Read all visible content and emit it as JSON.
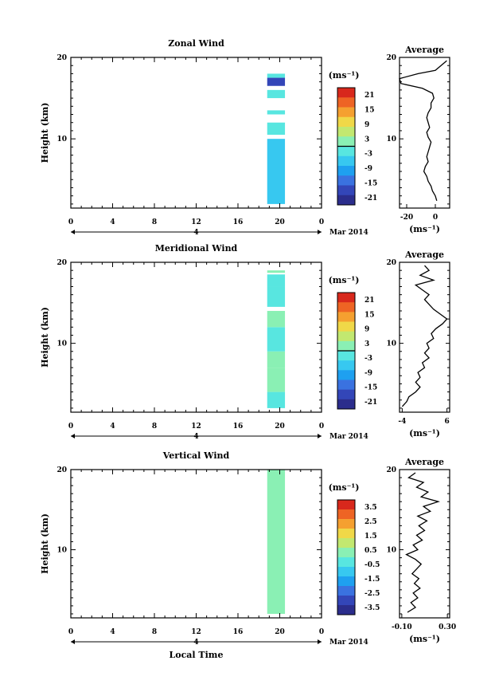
{
  "colors": {
    "palette": [
      "#2b2d8c",
      "#3346b8",
      "#3a72e0",
      "#1ea0f0",
      "#37c8f0",
      "#58e6e0",
      "#8af0b4",
      "#c2e870",
      "#f0d848",
      "#f5a030",
      "#ee6424",
      "#d8281c"
    ]
  },
  "chart_data": [
    {
      "type": "heatmap",
      "title": "Zonal Wind",
      "ylabel": "Height (km)",
      "xlabel": "",
      "x_ticks": [
        "0",
        "4",
        "8",
        "12",
        "16",
        "20",
        "0"
      ],
      "y_ticks": [
        "20",
        "10"
      ],
      "xlim": [
        0,
        24
      ],
      "ylim": [
        1.5,
        20
      ],
      "date_axis": {
        "day": "4",
        "month_label": "Mar 2014"
      },
      "data_extent": {
        "x": [
          18.8,
          20.5
        ],
        "y": [
          2,
          18
        ]
      },
      "colorbar": {
        "unit": "(ms⁻¹)",
        "ticks": [
          "21",
          "15",
          "9",
          "3",
          "-3",
          "-9",
          "-15",
          "-21"
        ],
        "range": [
          -24,
          24
        ],
        "zero_line": 0
      },
      "cells": [
        {
          "y0": 2,
          "y1": 10,
          "value": -6
        },
        {
          "y0": 10.5,
          "y1": 12,
          "value": -2
        },
        {
          "y0": 13,
          "y1": 13.5,
          "value": -1
        },
        {
          "y0": 15,
          "y1": 16,
          "value": -3
        },
        {
          "y0": 16.5,
          "y1": 17.5,
          "value": -19
        },
        {
          "y0": 17.5,
          "y1": 18,
          "value": -1
        }
      ],
      "average": {
        "title": "Average",
        "xlabel": "(ms⁻¹)",
        "x_ticks": [
          "-20",
          "0"
        ],
        "xlim": [
          -25,
          10
        ],
        "y_ticks": [
          "20",
          "10"
        ],
        "ylim": [
          1.5,
          20
        ],
        "profile": [
          {
            "x": 1,
            "y": 2.4
          },
          {
            "x": 0,
            "y": 3
          },
          {
            "x": -2,
            "y": 3.6
          },
          {
            "x": -3,
            "y": 4.2
          },
          {
            "x": -5,
            "y": 4.8
          },
          {
            "x": -6,
            "y": 5.4
          },
          {
            "x": -8,
            "y": 6
          },
          {
            "x": -7,
            "y": 6.6
          },
          {
            "x": -5,
            "y": 7.2
          },
          {
            "x": -6,
            "y": 7.8
          },
          {
            "x": -5,
            "y": 8.4
          },
          {
            "x": -4,
            "y": 9
          },
          {
            "x": -3,
            "y": 9.6
          },
          {
            "x": -5,
            "y": 10.2
          },
          {
            "x": -6,
            "y": 10.8
          },
          {
            "x": -4,
            "y": 11.4
          },
          {
            "x": -5,
            "y": 12
          },
          {
            "x": -6,
            "y": 12.6
          },
          {
            "x": -5,
            "y": 13.2
          },
          {
            "x": -3,
            "y": 13.8
          },
          {
            "x": -3,
            "y": 14.4
          },
          {
            "x": -1,
            "y": 15
          },
          {
            "x": -2,
            "y": 15.6
          },
          {
            "x": -9,
            "y": 16.2
          },
          {
            "x": -24,
            "y": 16.8
          },
          {
            "x": -25,
            "y": 17.4
          },
          {
            "x": -12,
            "y": 18
          },
          {
            "x": 0,
            "y": 18.4
          },
          {
            "x": 8,
            "y": 19.6
          }
        ]
      }
    },
    {
      "type": "heatmap",
      "title": "Meridional Wind",
      "ylabel": "Height (km)",
      "xlabel": "",
      "x_ticks": [
        "0",
        "4",
        "8",
        "12",
        "16",
        "20",
        "0"
      ],
      "y_ticks": [
        "20",
        "10"
      ],
      "xlim": [
        0,
        24
      ],
      "ylim": [
        1.5,
        20
      ],
      "date_axis": {
        "day": "4",
        "month_label": "Mar 2014"
      },
      "data_extent": {
        "x": [
          18.8,
          20.5
        ],
        "y": [
          2,
          19
        ]
      },
      "colorbar": {
        "unit": "(ms⁻¹)",
        "ticks": [
          "21",
          "15",
          "9",
          "3",
          "-3",
          "-9",
          "-15",
          "-21"
        ],
        "range": [
          -24,
          24
        ],
        "zero_line": 0
      },
      "cells": [
        {
          "y0": 2,
          "y1": 4,
          "value": -3
        },
        {
          "y0": 4,
          "y1": 7,
          "value": 0
        },
        {
          "y0": 7,
          "y1": 9,
          "value": 1
        },
        {
          "y0": 9,
          "y1": 12,
          "value": -1
        },
        {
          "y0": 12,
          "y1": 14,
          "value": 3
        },
        {
          "y0": 14.5,
          "y1": 17,
          "value": -1
        },
        {
          "y0": 17,
          "y1": 18.5,
          "value": -3
        },
        {
          "y0": 18.7,
          "y1": 19,
          "value": 0
        }
      ],
      "average": {
        "title": "Average",
        "xlabel": "(ms⁻¹)",
        "x_ticks": [
          "-4",
          "6"
        ],
        "xlim": [
          -4.6,
          6.6
        ],
        "y_ticks": [
          "20",
          "10"
        ],
        "ylim": [
          1.5,
          20
        ],
        "profile": [
          {
            "x": -4,
            "y": 2.2
          },
          {
            "x": -3,
            "y": 2.8
          },
          {
            "x": -2.5,
            "y": 3.4
          },
          {
            "x": -1,
            "y": 4
          },
          {
            "x": 0,
            "y": 4.6
          },
          {
            "x": -1,
            "y": 5.2
          },
          {
            "x": 0,
            "y": 5.8
          },
          {
            "x": -0.5,
            "y": 6.4
          },
          {
            "x": 1,
            "y": 7
          },
          {
            "x": 0.5,
            "y": 7.6
          },
          {
            "x": 2,
            "y": 8.2
          },
          {
            "x": 1,
            "y": 8.8
          },
          {
            "x": 2,
            "y": 9.4
          },
          {
            "x": 1.5,
            "y": 10
          },
          {
            "x": 3,
            "y": 10.6
          },
          {
            "x": 2.5,
            "y": 11.2
          },
          {
            "x": 3.5,
            "y": 11.8
          },
          {
            "x": 5,
            "y": 12.4
          },
          {
            "x": 6,
            "y": 13
          },
          {
            "x": 4.5,
            "y": 13.6
          },
          {
            "x": 3,
            "y": 14.2
          },
          {
            "x": 2,
            "y": 14.8
          },
          {
            "x": 1,
            "y": 15.4
          },
          {
            "x": 2,
            "y": 16
          },
          {
            "x": 0.5,
            "y": 16.6
          },
          {
            "x": -1,
            "y": 17.2
          },
          {
            "x": 3,
            "y": 17.8
          },
          {
            "x": 0,
            "y": 18.4
          },
          {
            "x": 2,
            "y": 19
          },
          {
            "x": 1,
            "y": 19.6
          }
        ]
      }
    },
    {
      "type": "heatmap",
      "title": "Vertical Wind",
      "ylabel": "Height (km)",
      "xlabel": "Local Time",
      "x_ticks": [
        "0",
        "4",
        "8",
        "12",
        "16",
        "20",
        "0"
      ],
      "y_ticks": [
        "20",
        "10"
      ],
      "xlim": [
        0,
        24
      ],
      "ylim": [
        1.5,
        20
      ],
      "date_axis": {
        "day": "4",
        "month_label": "Mar 2014"
      },
      "data_extent": {
        "x": [
          18.8,
          20.5
        ],
        "y": [
          2,
          20
        ]
      },
      "colorbar": {
        "unit": "(ms⁻¹)",
        "ticks": [
          "3.5",
          "2.5",
          "1.5",
          "0.5",
          "-0.5",
          "-1.5",
          "-2.5",
          "-3.5"
        ],
        "range": [
          -4,
          4
        ],
        "zero_line": null
      },
      "cells": [
        {
          "y0": 2,
          "y1": 20,
          "value": 0.2
        }
      ],
      "average": {
        "title": "Average",
        "xlabel": "(ms⁻¹)",
        "x_ticks": [
          "-0.10",
          "0.30"
        ],
        "xlim": [
          -0.12,
          0.32
        ],
        "y_ticks": [
          "20",
          "10"
        ],
        "ylim": [
          1.5,
          20
        ],
        "profile": [
          {
            "x": -0.05,
            "y": 2.2
          },
          {
            "x": 0.02,
            "y": 2.8
          },
          {
            "x": -0.02,
            "y": 3.4
          },
          {
            "x": 0.04,
            "y": 4
          },
          {
            "x": 0.0,
            "y": 4.6
          },
          {
            "x": 0.06,
            "y": 5.2
          },
          {
            "x": 0.01,
            "y": 5.8
          },
          {
            "x": 0.05,
            "y": 6.4
          },
          {
            "x": -0.01,
            "y": 7
          },
          {
            "x": 0.03,
            "y": 7.6
          },
          {
            "x": 0.07,
            "y": 8.2
          },
          {
            "x": 0.02,
            "y": 8.8
          },
          {
            "x": -0.06,
            "y": 9.4
          },
          {
            "x": 0.04,
            "y": 10
          },
          {
            "x": 0.0,
            "y": 10.6
          },
          {
            "x": 0.08,
            "y": 11.2
          },
          {
            "x": 0.03,
            "y": 11.8
          },
          {
            "x": 0.1,
            "y": 12.4
          },
          {
            "x": 0.05,
            "y": 13
          },
          {
            "x": 0.12,
            "y": 13.6
          },
          {
            "x": 0.04,
            "y": 14.2
          },
          {
            "x": 0.15,
            "y": 14.8
          },
          {
            "x": 0.09,
            "y": 15.4
          },
          {
            "x": 0.22,
            "y": 16
          },
          {
            "x": 0.07,
            "y": 16.6
          },
          {
            "x": 0.13,
            "y": 17.2
          },
          {
            "x": 0.03,
            "y": 17.8
          },
          {
            "x": 0.09,
            "y": 18.4
          },
          {
            "x": -0.04,
            "y": 19
          },
          {
            "x": 0.02,
            "y": 19.6
          }
        ]
      }
    }
  ]
}
